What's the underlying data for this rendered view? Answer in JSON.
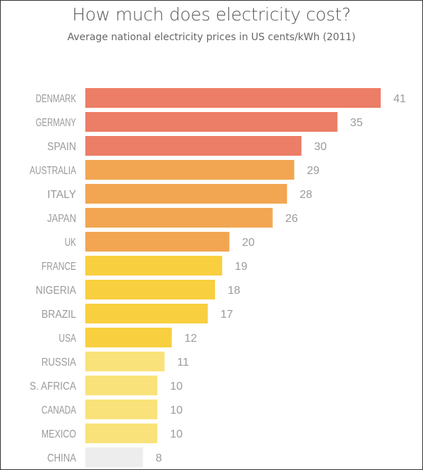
{
  "chart_data": {
    "type": "bar",
    "orientation": "horizontal",
    "title": "How much does electricity cost?",
    "subtitle": "Average national electricity prices in US cents/kWh (2011)",
    "categories": [
      "DENMARK",
      "GERMANY",
      "SPAIN",
      "AUSTRALIA",
      "ITALY",
      "JAPAN",
      "UK",
      "FRANCE",
      "NIGERIA",
      "BRAZIL",
      "USA",
      "RUSSIA",
      "S. AFRICA",
      "CANADA",
      "MEXICO",
      "CHINA"
    ],
    "values": [
      41,
      35,
      30,
      29,
      28,
      26,
      20,
      19,
      18,
      17,
      12,
      11,
      10,
      10,
      10,
      8
    ],
    "bar_colors": [
      "#EC7D66",
      "#EC7D66",
      "#EC7D66",
      "#F2A652",
      "#F2A652",
      "#F2A652",
      "#F2A652",
      "#F8CF3E",
      "#F8CF3E",
      "#F8CF3E",
      "#F8CF3E",
      "#F9E27A",
      "#F9E27A",
      "#F9E27A",
      "#F9E27A",
      "#EDEDED"
    ],
    "data_labels": true,
    "grid": false,
    "legend": "none"
  }
}
